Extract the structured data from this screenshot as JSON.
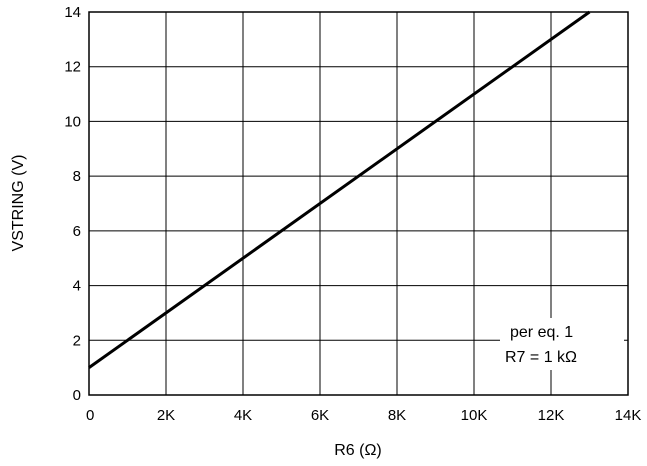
{
  "chart_data": {
    "type": "line",
    "xlabel": "R6 (Ω)",
    "ylabel": "VSTRING (V)",
    "xlim": [
      0,
      14000
    ],
    "ylim": [
      0,
      14
    ],
    "x_ticks": [
      {
        "value": 0,
        "label": "0"
      },
      {
        "value": 2000,
        "label": "2K"
      },
      {
        "value": 4000,
        "label": "4K"
      },
      {
        "value": 6000,
        "label": "6K"
      },
      {
        "value": 8000,
        "label": "8K"
      },
      {
        "value": 10000,
        "label": "10K"
      },
      {
        "value": 12000,
        "label": "12K"
      },
      {
        "value": 14000,
        "label": "14K"
      }
    ],
    "y_ticks": [
      {
        "value": 0,
        "label": "0"
      },
      {
        "value": 2,
        "label": "2"
      },
      {
        "value": 4,
        "label": "4"
      },
      {
        "value": 6,
        "label": "6"
      },
      {
        "value": 8,
        "label": "8"
      },
      {
        "value": 10,
        "label": "10"
      },
      {
        "value": 12,
        "label": "12"
      },
      {
        "value": 14,
        "label": "14"
      }
    ],
    "grid": true,
    "series": [
      {
        "x": [
          0,
          13000
        ],
        "y": [
          1,
          14
        ],
        "color": "#000000"
      }
    ],
    "annotation": {
      "lines": [
        "per eq. 1",
        "R7 = 1 kΩ"
      ],
      "placement": "bottom-right"
    }
  }
}
